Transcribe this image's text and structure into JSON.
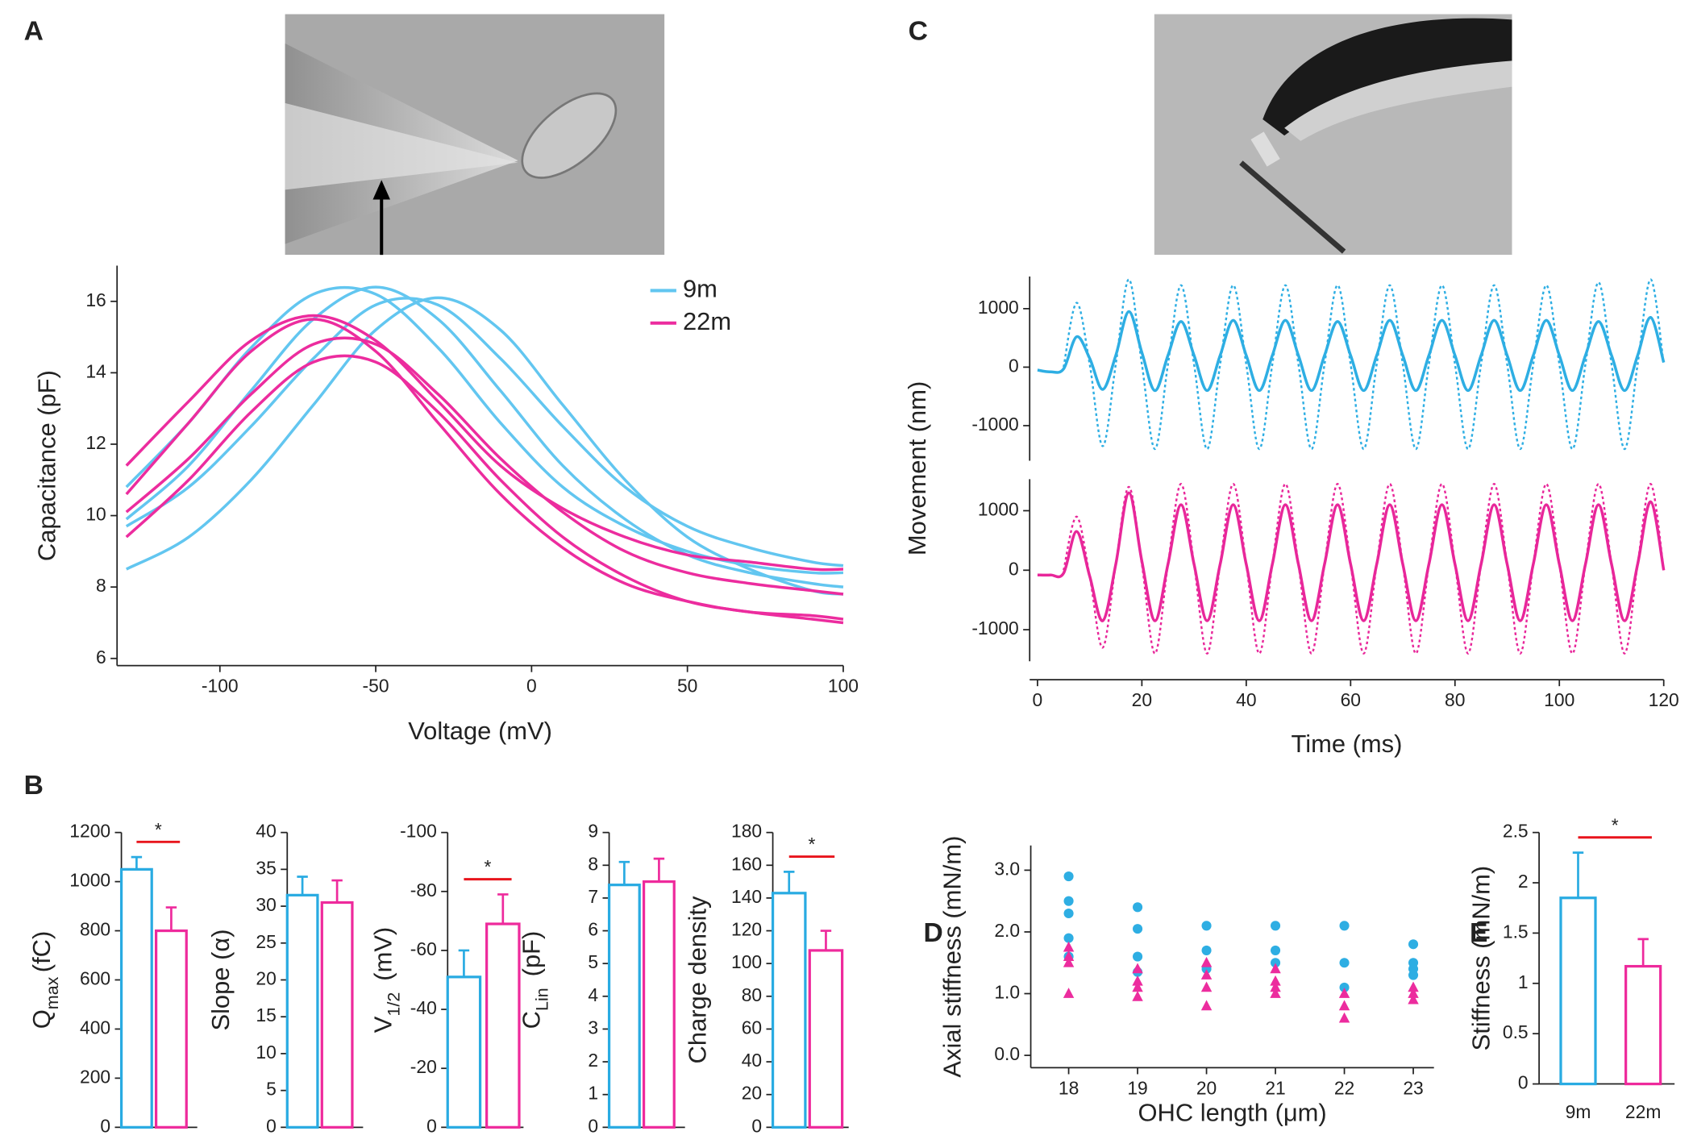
{
  "panel_labels": [
    "A",
    "B",
    "C",
    "D",
    "E"
  ],
  "chart_data": [
    {
      "type": "line",
      "xlabel": "Voltage (mV)",
      "ylabel": "Capacitance (pF)",
      "xlim": [
        -133,
        100
      ],
      "xticks": [
        -100,
        -50,
        0,
        50,
        100
      ],
      "ylim": [
        5.8,
        17
      ],
      "yticks": [
        6,
        8,
        10,
        12,
        14,
        16
      ],
      "legend": [
        {
          "name": "9m",
          "color": "#62c6f0"
        },
        {
          "name": "22m",
          "color": "#ec2c9e"
        }
      ],
      "x": [
        -130,
        -110,
        -90,
        -70,
        -50,
        -30,
        -10,
        10,
        30,
        50,
        70,
        90,
        100
      ],
      "series": [
        {
          "color": "#62c6f0",
          "values": [
            9.9,
            11.4,
            13.5,
            15.5,
            16.4,
            15.5,
            13.5,
            11.4,
            9.9,
            8.9,
            8.4,
            8.1,
            8.0
          ]
        },
        {
          "color": "#62c6f0",
          "values": [
            10.8,
            12.6,
            14.7,
            16.2,
            16.2,
            14.7,
            12.6,
            10.8,
            9.7,
            9.0,
            8.6,
            8.4,
            8.4
          ]
        },
        {
          "color": "#62c6f0",
          "values": [
            8.5,
            9.4,
            11.0,
            13.1,
            15.2,
            16.1,
            15.2,
            13.1,
            11.0,
            9.4,
            8.5,
            7.9,
            7.8
          ]
        },
        {
          "color": "#62c6f0",
          "values": [
            9.7,
            10.8,
            12.5,
            14.4,
            15.9,
            15.9,
            14.4,
            12.5,
            10.8,
            9.7,
            9.1,
            8.7,
            8.6
          ]
        },
        {
          "color": "#ec2c9e",
          "values": [
            11.4,
            13.2,
            14.9,
            15.6,
            14.9,
            13.2,
            11.4,
            10.2,
            9.4,
            8.9,
            8.7,
            8.5,
            8.5
          ]
        },
        {
          "color": "#ec2c9e",
          "values": [
            10.1,
            11.6,
            13.4,
            14.8,
            14.8,
            13.4,
            11.6,
            10.1,
            9.0,
            8.4,
            8.1,
            7.9,
            7.8
          ]
        },
        {
          "color": "#ec2c9e",
          "values": [
            9.4,
            11.0,
            12.9,
            14.3,
            14.3,
            12.9,
            11.0,
            9.4,
            8.3,
            7.6,
            7.3,
            7.1,
            7.0
          ]
        },
        {
          "color": "#ec2c9e",
          "values": [
            10.6,
            12.6,
            14.6,
            15.5,
            14.6,
            12.6,
            10.6,
            9.1,
            8.1,
            7.6,
            7.3,
            7.2,
            7.1
          ]
        }
      ]
    },
    {
      "type": "line",
      "ylabel": "Movement (nm)",
      "xlim": [
        -1.5,
        120
      ],
      "ylim": [
        -1600,
        1550
      ],
      "yticks": [
        -1000,
        0,
        1000
      ],
      "x": [
        0,
        2.5,
        5,
        7.5,
        10,
        12.5,
        15,
        17.5,
        20,
        22.5,
        25,
        27.5,
        30,
        32.5,
        35,
        37.5,
        40,
        42.5,
        45,
        47.5,
        50,
        52.5,
        55,
        57.5,
        60,
        62.5,
        65,
        67.5,
        70,
        72.5,
        75,
        77.5,
        80,
        82.5,
        85,
        87.5,
        90,
        92.5,
        95,
        97.5,
        100,
        102.5,
        105,
        107.5,
        110,
        112.5,
        115,
        117.5,
        120
      ],
      "series": [
        {
          "color": "#2eaee3",
          "dashed": false,
          "values": [
            -50,
            -80,
            -30,
            520,
            150,
            -380,
            200,
            950,
            250,
            -400,
            200,
            780,
            200,
            -400,
            200,
            800,
            200,
            -400,
            200,
            800,
            200,
            -400,
            200,
            780,
            200,
            -400,
            200,
            800,
            200,
            -400,
            200,
            800,
            200,
            -400,
            200,
            800,
            200,
            -400,
            200,
            800,
            200,
            -400,
            200,
            780,
            200,
            -400,
            200,
            850,
            80
          ]
        },
        {
          "color": "#2eaee3",
          "dashed": true,
          "values": [
            null,
            null,
            0,
            1100,
            50,
            -1350,
            50,
            1500,
            50,
            -1400,
            50,
            1400,
            50,
            -1400,
            50,
            1400,
            50,
            -1400,
            50,
            1400,
            50,
            -1400,
            50,
            1400,
            50,
            -1400,
            50,
            1400,
            50,
            -1400,
            50,
            1400,
            50,
            -1400,
            50,
            1400,
            50,
            -1400,
            50,
            1400,
            50,
            -1400,
            50,
            1450,
            50,
            -1400,
            50,
            1500,
            50
          ]
        }
      ]
    },
    {
      "type": "line",
      "xlabel": "Time (ms)",
      "xlim": [
        -1.5,
        120
      ],
      "xticks": [
        0,
        20,
        40,
        60,
        80,
        100,
        120
      ],
      "ylim": [
        -1530,
        1530
      ],
      "yticks": [
        -1000,
        0,
        1000
      ],
      "x": [
        0,
        2.5,
        5,
        7.5,
        10,
        12.5,
        15,
        17.5,
        20,
        22.5,
        25,
        27.5,
        30,
        32.5,
        35,
        37.5,
        40,
        42.5,
        45,
        47.5,
        50,
        52.5,
        55,
        57.5,
        60,
        62.5,
        65,
        67.5,
        70,
        72.5,
        75,
        77.5,
        80,
        82.5,
        85,
        87.5,
        90,
        92.5,
        95,
        97.5,
        100,
        102.5,
        105,
        107.5,
        110,
        112.5,
        115,
        117.5,
        120
      ],
      "series": [
        {
          "color": "#e8279a",
          "dashed": false,
          "values": [
            -80,
            -80,
            -50,
            650,
            -100,
            -850,
            100,
            1300,
            150,
            -850,
            100,
            1100,
            100,
            -850,
            100,
            1100,
            100,
            -850,
            100,
            1100,
            100,
            -850,
            100,
            1100,
            100,
            -850,
            100,
            1100,
            100,
            -850,
            100,
            1100,
            100,
            -850,
            100,
            1100,
            100,
            -850,
            100,
            1100,
            100,
            -850,
            100,
            1100,
            100,
            -850,
            100,
            1150,
            0
          ]
        },
        {
          "color": "#e8279a",
          "dashed": true,
          "values": [
            null,
            null,
            0,
            900,
            -100,
            -1300,
            100,
            1400,
            100,
            -1400,
            100,
            1450,
            100,
            -1400,
            100,
            1450,
            100,
            -1400,
            100,
            1450,
            100,
            -1400,
            100,
            1450,
            100,
            -1400,
            100,
            1450,
            100,
            -1400,
            100,
            1450,
            100,
            -1400,
            100,
            1450,
            100,
            -1400,
            100,
            1450,
            100,
            -1400,
            100,
            1450,
            100,
            -1400,
            100,
            1450,
            0
          ]
        }
      ]
    },
    {
      "type": "bar",
      "ylabel": [
        "Q",
        "max",
        "(fC)"
      ],
      "ylim": [
        0,
        1200
      ],
      "yticks": [
        0,
        200,
        400,
        600,
        800,
        1000,
        1200
      ],
      "categories": [
        null,
        null
      ],
      "values": [
        1050,
        800
      ],
      "errors": [
        50,
        95
      ],
      "colors": [
        "#29abe2",
        "#ee2a9c"
      ],
      "significance": "*"
    },
    {
      "type": "bar",
      "ylabel": "Slope (α)",
      "ylim": [
        0,
        40
      ],
      "yticks": [
        0,
        5,
        10,
        15,
        20,
        25,
        30,
        35,
        40
      ],
      "categories": [
        null,
        null
      ],
      "values": [
        31.5,
        30.5
      ],
      "errors": [
        2.5,
        3
      ],
      "colors": [
        "#29abe2",
        "#ee2a9c"
      ]
    },
    {
      "type": "bar",
      "ylabel": [
        "V",
        "1/2",
        " (mV)"
      ],
      "ylim": [
        0,
        -100
      ],
      "yticks": [
        0,
        -20,
        -40,
        -60,
        -80,
        -100
      ],
      "categories": [
        null,
        null
      ],
      "values": [
        -51,
        -69
      ],
      "errors": [
        9,
        10
      ],
      "colors": [
        "#29abe2",
        "#ee2a9c"
      ],
      "significance": "*"
    },
    {
      "type": "bar",
      "ylabel": [
        "C",
        "Lin",
        " (pF)"
      ],
      "ylim": [
        0,
        9
      ],
      "yticks": [
        0,
        1,
        2,
        3,
        4,
        5,
        6,
        7,
        8,
        9
      ],
      "categories": [
        null,
        null
      ],
      "values": [
        7.4,
        7.5
      ],
      "errors": [
        0.7,
        0.7
      ],
      "colors": [
        "#29abe2",
        "#ee2a9c"
      ]
    },
    {
      "type": "bar",
      "ylabel": "Charge density",
      "ylim": [
        0,
        180
      ],
      "yticks": [
        0,
        20,
        40,
        60,
        80,
        100,
        120,
        140,
        160,
        180
      ],
      "categories": [
        null,
        null
      ],
      "values": [
        143,
        108
      ],
      "errors": [
        13,
        12
      ],
      "colors": [
        "#29abe2",
        "#ee2a9c"
      ],
      "significance": "*"
    },
    {
      "type": "scatter",
      "xlabel": "OHC length (μm)",
      "ylabel": "Axial stiffness (mN/m)",
      "xlim": [
        17.45,
        23.3
      ],
      "xticks": [
        18,
        19,
        20,
        21,
        22,
        23
      ],
      "ylim": [
        -0.2,
        3.4
      ],
      "yticks": [
        {
          "value": 0,
          "label": "0.0"
        },
        {
          "value": 1,
          "label": "1.0"
        },
        {
          "value": 2,
          "label": "2.0"
        },
        {
          "value": 3,
          "label": "3.0"
        }
      ],
      "series": [
        {
          "color": "#2eaee3",
          "marker": "circle",
          "x": [
            18,
            18,
            18,
            18,
            18,
            19,
            19,
            19,
            19,
            20,
            20,
            20,
            21,
            21,
            21,
            22,
            22,
            22,
            23,
            23,
            23,
            23
          ],
          "values": [
            2.9,
            2.5,
            2.3,
            1.9,
            1.6,
            2.4,
            2.05,
            1.6,
            1.35,
            2.1,
            1.7,
            1.4,
            2.1,
            1.7,
            1.5,
            2.1,
            1.5,
            1.1,
            1.8,
            1.5,
            1.4,
            1.3
          ]
        },
        {
          "color": "#ec2c9e",
          "marker": "triangle",
          "x": [
            18,
            18,
            18,
            18,
            19,
            19,
            19,
            19,
            20,
            20,
            20,
            20,
            21,
            21,
            21,
            21,
            22,
            22,
            22,
            23,
            23,
            23
          ],
          "values": [
            1.75,
            1.6,
            1.5,
            1.0,
            1.4,
            1.2,
            1.1,
            0.95,
            1.5,
            1.3,
            1.1,
            0.8,
            1.4,
            1.2,
            1.1,
            1.0,
            1.0,
            0.8,
            0.6,
            1.1,
            1.0,
            0.9
          ]
        }
      ]
    },
    {
      "type": "bar",
      "ylabel": "Stiffness (mN/m)",
      "ylim": [
        0,
        2.5
      ],
      "yticks": [
        0,
        0.5,
        1,
        1.5,
        2,
        2.5
      ],
      "categories": [
        "9m",
        "22m"
      ],
      "values": [
        1.85,
        1.17
      ],
      "errors": [
        0.45,
        0.27
      ],
      "colors": [
        "#29abe2",
        "#ee2a9c"
      ],
      "significance": "*"
    }
  ]
}
